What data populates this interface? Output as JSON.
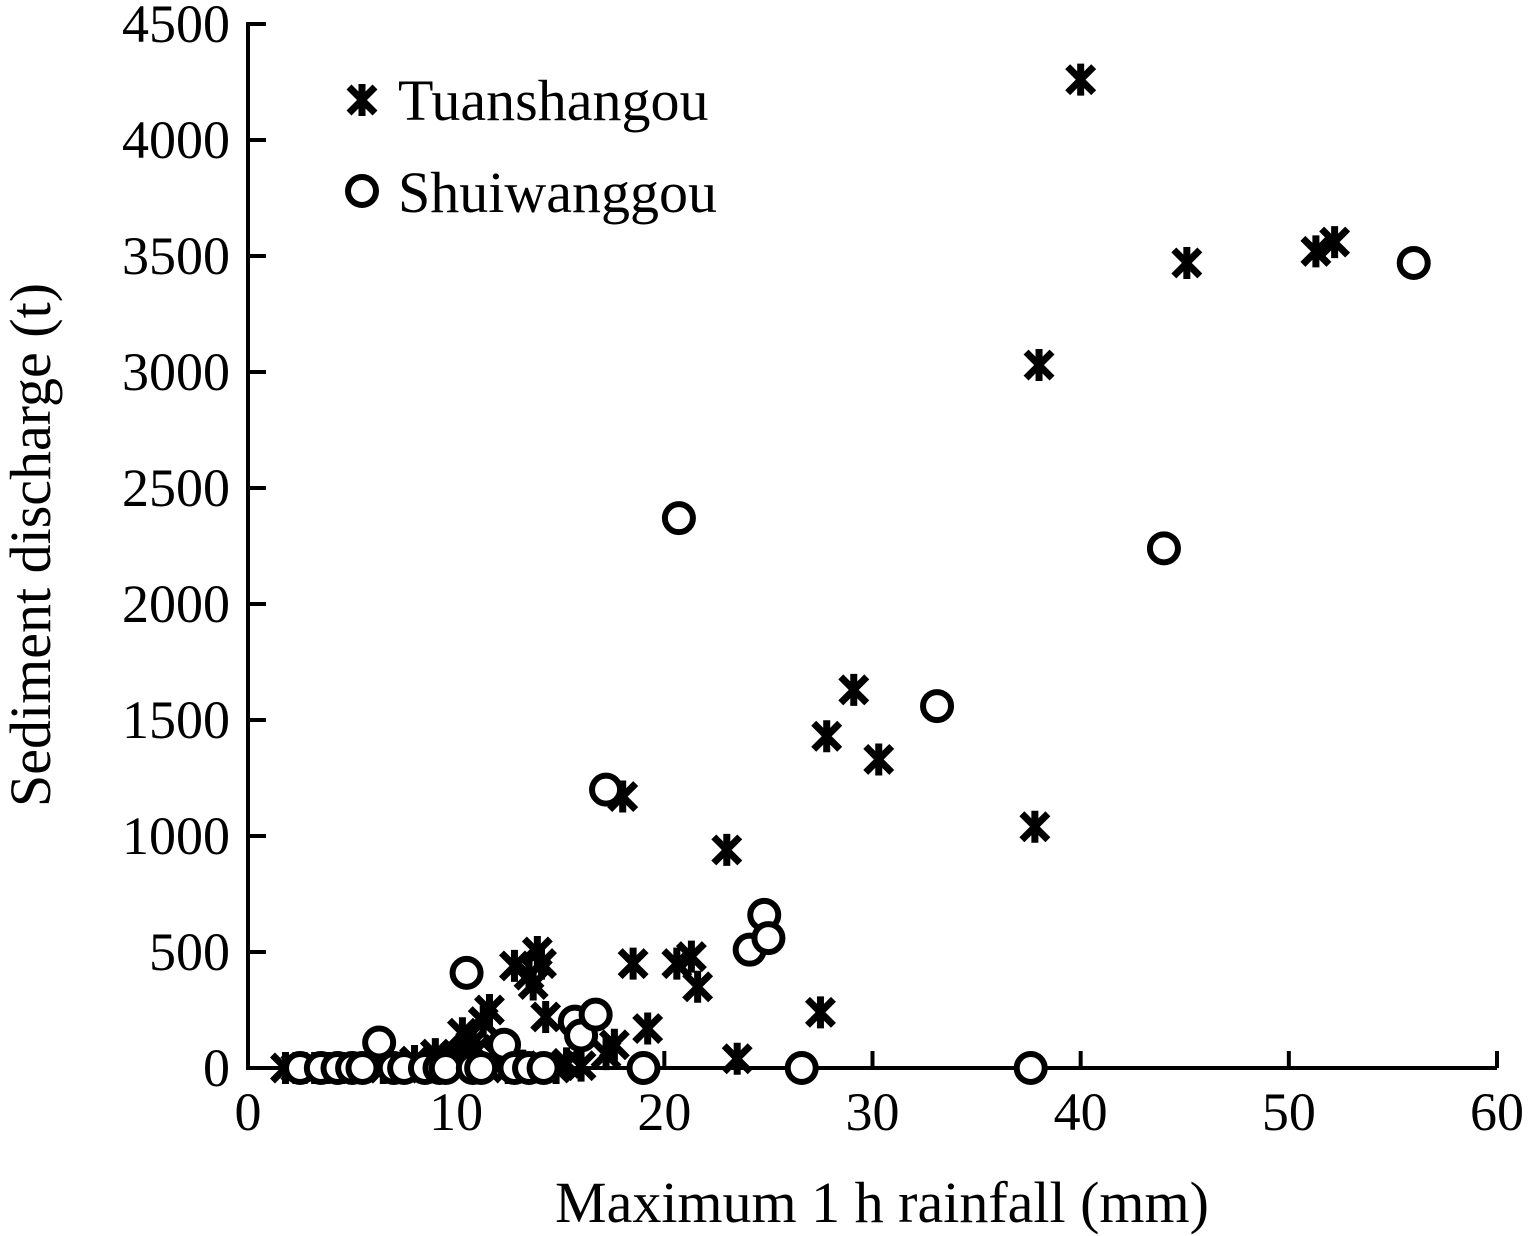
{
  "chart_data": {
    "type": "scatter",
    "title": "",
    "xlabel": "Maximum 1 h rainfall (mm)",
    "ylabel": "Sediment discharge (t)",
    "xlim": [
      0,
      60
    ],
    "ylim": [
      0,
      4500
    ],
    "x_ticks": [
      0,
      10,
      20,
      30,
      40,
      50,
      60
    ],
    "y_ticks": [
      0,
      500,
      1000,
      1500,
      2000,
      2500,
      3000,
      3500,
      4000,
      4500
    ],
    "grid": false,
    "legend_position": "top-left",
    "series": [
      {
        "name": "Tuanshangou",
        "marker": "asterisk",
        "points": [
          [
            1.8,
            0
          ],
          [
            2.3,
            0
          ],
          [
            2.7,
            0
          ],
          [
            3.2,
            0
          ],
          [
            3.8,
            0
          ],
          [
            4.5,
            0
          ],
          [
            5.5,
            0
          ],
          [
            6.5,
            0
          ],
          [
            7.5,
            0
          ],
          [
            8.0,
            30
          ],
          [
            8.5,
            0
          ],
          [
            9.0,
            60
          ],
          [
            9.5,
            40
          ],
          [
            10.0,
            50
          ],
          [
            10.3,
            150
          ],
          [
            10.7,
            100
          ],
          [
            11.0,
            80
          ],
          [
            11.3,
            200
          ],
          [
            11.6,
            250
          ],
          [
            12.0,
            50
          ],
          [
            12.5,
            0
          ],
          [
            12.8,
            440
          ],
          [
            13.2,
            10
          ],
          [
            13.5,
            400
          ],
          [
            13.7,
            360
          ],
          [
            13.9,
            500
          ],
          [
            14.1,
            450
          ],
          [
            14.3,
            220
          ],
          [
            14.8,
            0
          ],
          [
            15.3,
            20
          ],
          [
            16.0,
            10
          ],
          [
            17.2,
            60
          ],
          [
            17.6,
            100
          ],
          [
            18.0,
            1170
          ],
          [
            18.5,
            450
          ],
          [
            19.2,
            170
          ],
          [
            20.6,
            450
          ],
          [
            21.3,
            480
          ],
          [
            21.6,
            350
          ],
          [
            23.0,
            940
          ],
          [
            23.5,
            40
          ],
          [
            27.5,
            240
          ],
          [
            27.8,
            1430
          ],
          [
            29.1,
            1630
          ],
          [
            30.3,
            1330
          ],
          [
            37.8,
            1040
          ],
          [
            38.0,
            3030
          ],
          [
            40.0,
            4260
          ],
          [
            45.1,
            3470
          ],
          [
            51.3,
            3520
          ],
          [
            52.2,
            3560
          ]
        ]
      },
      {
        "name": "Shuiwanggou",
        "marker": "circle",
        "points": [
          [
            2.5,
            0
          ],
          [
            3.5,
            0
          ],
          [
            4.3,
            0
          ],
          [
            5.0,
            0
          ],
          [
            5.5,
            0
          ],
          [
            6.3,
            110
          ],
          [
            7.0,
            0
          ],
          [
            7.5,
            0
          ],
          [
            8.5,
            0
          ],
          [
            9.2,
            0
          ],
          [
            9.5,
            0
          ],
          [
            10.5,
            410
          ],
          [
            10.8,
            0
          ],
          [
            11.2,
            0
          ],
          [
            12.3,
            100
          ],
          [
            12.8,
            0
          ],
          [
            13.5,
            0
          ],
          [
            14.2,
            0
          ],
          [
            15.7,
            200
          ],
          [
            16.0,
            140
          ],
          [
            16.7,
            230
          ],
          [
            17.2,
            1200
          ],
          [
            19.0,
            0
          ],
          [
            20.7,
            2370
          ],
          [
            24.1,
            510
          ],
          [
            24.8,
            660
          ],
          [
            25.0,
            560
          ],
          [
            26.6,
            0
          ],
          [
            33.1,
            1560
          ],
          [
            37.6,
            0
          ],
          [
            44.0,
            2240
          ],
          [
            56.0,
            3470
          ]
        ]
      }
    ]
  }
}
